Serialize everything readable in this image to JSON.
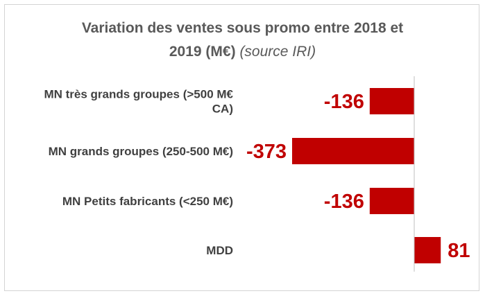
{
  "chart_data": {
    "type": "bar",
    "orientation": "horizontal",
    "title_line1": "Variation des ventes sous promo entre 2018 et",
    "title_line2_main": "2019 (M€)",
    "title_line2_source": "(source IRI)",
    "categories": [
      [
        "MN très grands groupes (>500 M€",
        "CA)"
      ],
      [
        "MN grands groupes (250-500 M€)"
      ],
      [
        "MN Petits fabricants (<250 M€)"
      ],
      [
        "MDD"
      ]
    ],
    "values": [
      -136,
      -373,
      -136,
      81
    ],
    "value_labels": [
      "-136",
      "-373",
      "-136",
      "81"
    ],
    "bar_color": "#c00000",
    "label_color": "#c00000",
    "xlim": [
      -373,
      81
    ],
    "grid": false,
    "legend": "none"
  }
}
